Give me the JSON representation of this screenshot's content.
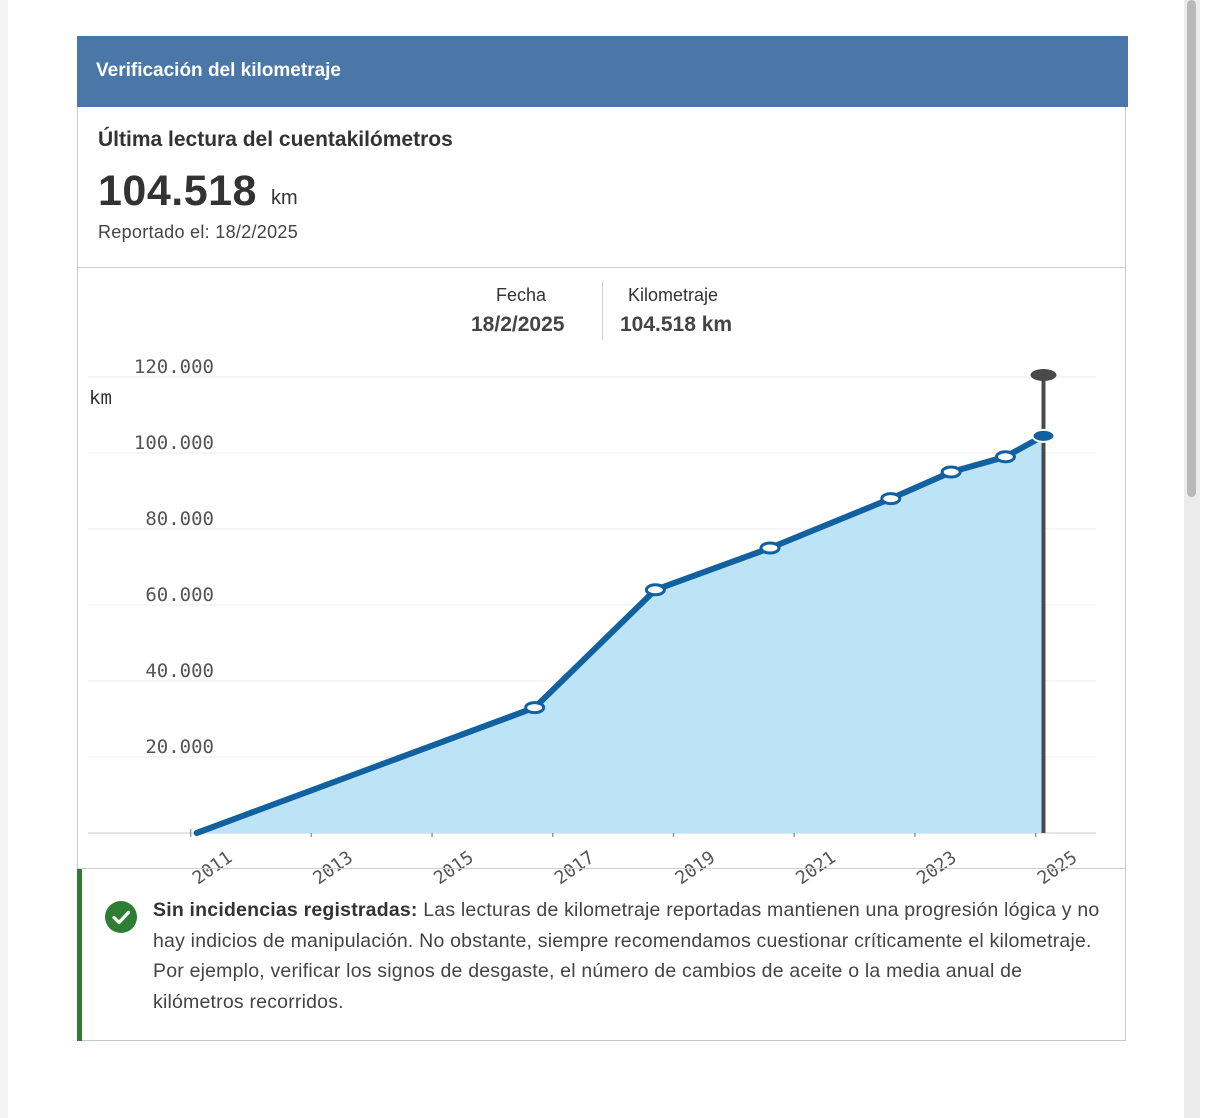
{
  "panel": {
    "title": "Verificación del kilometraje",
    "reading_label": "Última lectura del cuentakilómetros",
    "reading_value": "104.518",
    "reading_unit": "km",
    "reported": "Reportado el: 18/2/2025"
  },
  "tooltip": {
    "date_label": "Fecha",
    "date_value": "18/2/2025",
    "km_label": "Kilometraje",
    "km_value": "104.518 km"
  },
  "chart_data": {
    "type": "area",
    "ylabel": "km",
    "ylim": [
      0,
      120000
    ],
    "xlim": [
      2009.3,
      2026.0
    ],
    "y_ticks": [
      20000,
      40000,
      60000,
      80000,
      100000,
      120000
    ],
    "y_tick_labels": [
      "20.000",
      "40.000",
      "60.000",
      "80.000",
      "100.000",
      "120.000"
    ],
    "x_ticks": [
      2011,
      2013,
      2015,
      2017,
      2019,
      2021,
      2023,
      2025
    ],
    "x_tick_labels": [
      "2011",
      "2013",
      "2015",
      "2017",
      "2019",
      "2021",
      "2023",
      "2025"
    ],
    "grid": true,
    "legend": "none",
    "series": [
      {
        "x": [
          2011.1,
          2016.7,
          2018.7,
          2020.6,
          2022.6,
          2023.6,
          2024.5,
          2025.13
        ],
        "y": [
          0,
          33000,
          64000,
          75000,
          88000,
          95000,
          99000,
          104518
        ]
      }
    ],
    "highlight_index": 7,
    "colors": {
      "line": "#1160a0",
      "fill": "#bde3f6",
      "marker_outline": "#1160a0",
      "cursor": "#4a4a4a"
    }
  },
  "note": {
    "title": "Sin incidencias registradas:",
    "text": " Las lecturas de kilometraje reportadas mantienen una progresión lógica y no hay indicios de manipulación. No obstante, siempre recomendamos cuestionar críticamente el kilometraje. Por ejemplo, verificar los signos de desgaste, el número de cambios de aceite o la media anual de kilómetros recorridos."
  },
  "colors": {
    "header_bg": "#4a77a8",
    "ok_green": "#2e7d32"
  }
}
